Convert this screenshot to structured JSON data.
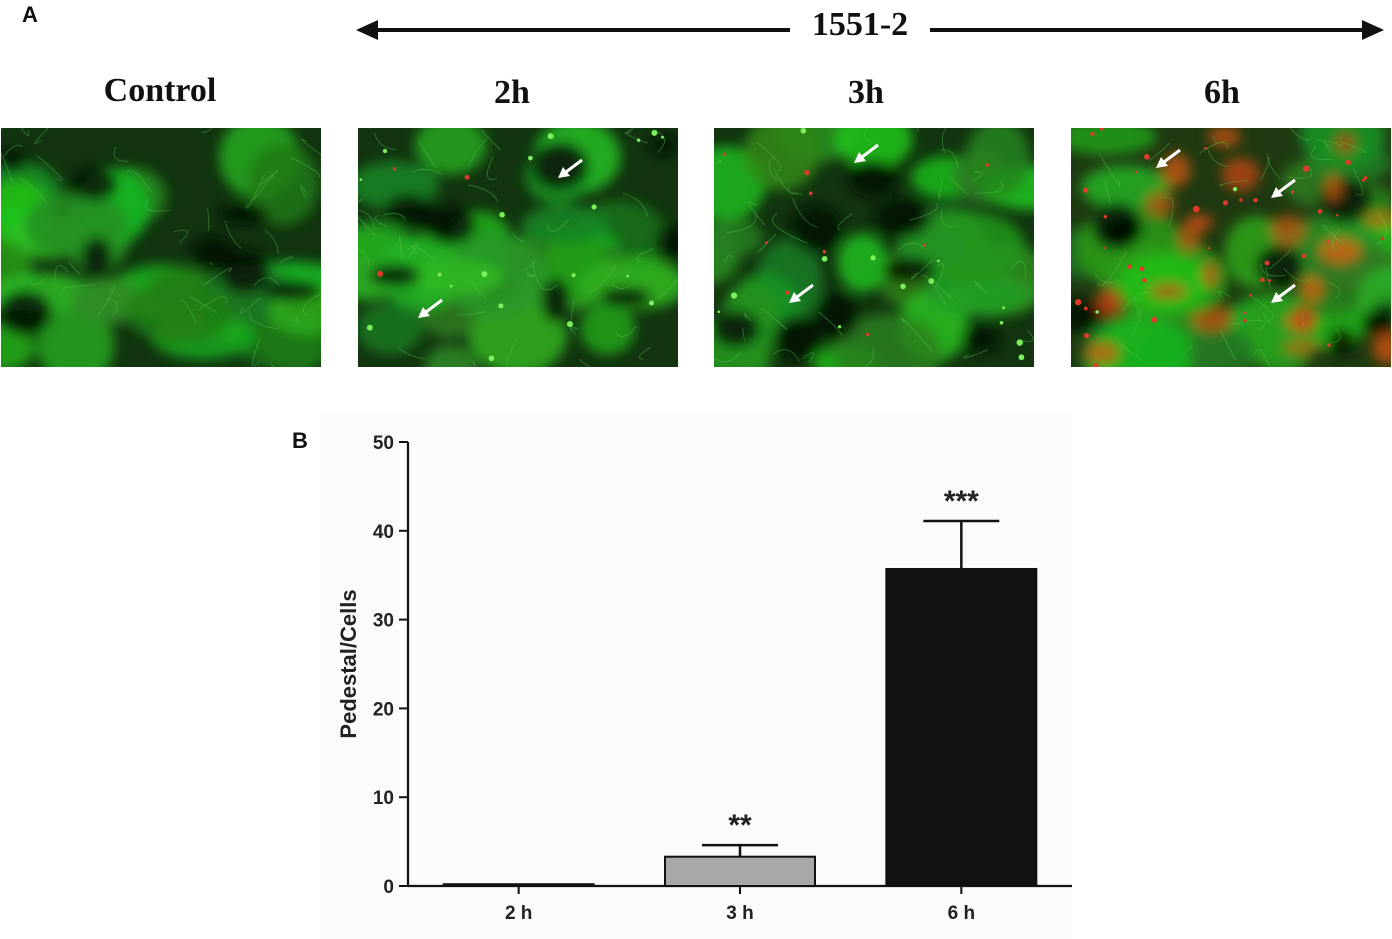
{
  "panel_a": {
    "letter": "A",
    "span_label": "1551-2",
    "images": [
      {
        "label": "Control",
        "arrows": 0
      },
      {
        "label": "2h",
        "arrows": 2
      },
      {
        "label": "3h",
        "arrows": 2
      },
      {
        "label": "6h",
        "arrows": 3
      }
    ]
  },
  "panel_b": {
    "letter": "B"
  },
  "chart_data": {
    "type": "bar",
    "categories": [
      "2 h",
      "3 h",
      "6 h"
    ],
    "values": [
      0.2,
      3.3,
      35.7
    ],
    "errors": [
      0.0,
      1.3,
      5.4
    ],
    "significance": [
      "",
      "**",
      "***"
    ],
    "bar_colors": [
      "#9a9a9a",
      "#a8a8a8",
      "#111111"
    ],
    "title": "",
    "xlabel": "",
    "ylabel": "Pedestal/Cells",
    "ylim": [
      0,
      50
    ],
    "yticks": [
      0,
      10,
      20,
      30,
      40,
      50
    ],
    "grid": false
  }
}
